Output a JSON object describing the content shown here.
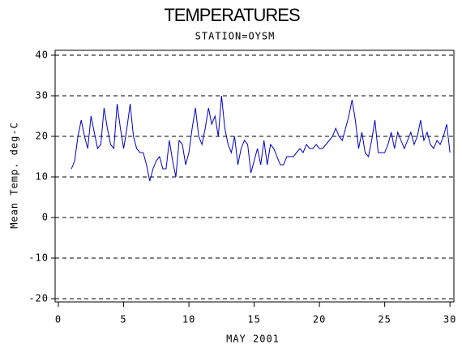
{
  "chart_data": {
    "type": "line",
    "title": "TEMPERATURES",
    "subtitle": "STATION=OYSM",
    "x_label": "MAY 2001",
    "y_label": "Mean Temp. deg-C",
    "xlim": [
      -0.25,
      30.3
    ],
    "xticks": [
      0,
      5,
      10,
      15,
      20,
      25,
      30
    ],
    "ylim": [
      -20.8,
      41.2
    ],
    "yticks": [
      -20,
      -10,
      0,
      10,
      20,
      30,
      40
    ],
    "grid": true,
    "series": [
      {
        "color": "#0000cc",
        "x": [
          1,
          1.25,
          1.5,
          1.75,
          2,
          2.25,
          2.5,
          2.75,
          3,
          3.25,
          3.5,
          3.75,
          4,
          4.25,
          4.5,
          4.75,
          5,
          5.25,
          5.5,
          5.75,
          6,
          6.25,
          6.5,
          6.75,
          7,
          7.25,
          7.5,
          7.75,
          8,
          8.25,
          8.5,
          8.75,
          9,
          9.25,
          9.5,
          9.75,
          10,
          10.25,
          10.5,
          10.75,
          11,
          11.25,
          11.5,
          11.75,
          12,
          12.25,
          12.5,
          12.75,
          13,
          13.25,
          13.5,
          13.75,
          14,
          14.25,
          14.5,
          14.75,
          15,
          15.25,
          15.5,
          15.75,
          16,
          16.25,
          16.5,
          16.75,
          17,
          17.25,
          17.5,
          17.75,
          18,
          18.25,
          18.5,
          18.75,
          19,
          19.25,
          19.5,
          19.75,
          20,
          20.25,
          20.5,
          20.75,
          21,
          21.25,
          21.5,
          21.75,
          22,
          22.25,
          22.5,
          22.75,
          23,
          23.25,
          23.5,
          23.75,
          24,
          24.25,
          24.5,
          24.75,
          25,
          25.25,
          25.5,
          25.75,
          26,
          26.25,
          26.5,
          26.75,
          27,
          27.25,
          27.5,
          27.75,
          28,
          28.25,
          28.5,
          28.75,
          29,
          29.25,
          29.5,
          29.75,
          30
        ],
        "values": [
          12,
          14,
          20,
          24,
          20,
          17,
          25,
          21,
          17,
          18,
          27,
          22,
          18,
          17,
          28,
          22,
          17,
          22,
          28,
          20,
          17,
          16,
          16,
          13,
          9,
          12,
          14,
          15,
          12,
          12,
          19,
          14,
          10,
          19,
          18,
          13,
          16,
          22,
          27,
          20,
          18,
          22,
          27,
          23,
          25,
          20,
          30,
          22,
          18,
          16,
          20,
          13,
          17,
          19,
          18,
          11,
          14,
          17,
          13,
          19,
          13,
          18,
          17,
          15,
          13,
          13,
          15,
          15,
          15,
          16,
          17,
          16,
          18,
          17,
          17,
          18,
          17,
          17,
          18,
          19,
          20,
          22,
          20,
          19,
          22,
          25,
          29,
          24,
          17,
          21,
          16,
          15,
          19,
          24,
          16,
          16,
          16,
          18,
          21,
          17,
          21,
          19,
          17,
          19,
          21,
          18,
          20,
          24,
          19,
          21,
          18,
          17,
          19,
          18,
          20,
          23,
          16
        ]
      }
    ]
  }
}
